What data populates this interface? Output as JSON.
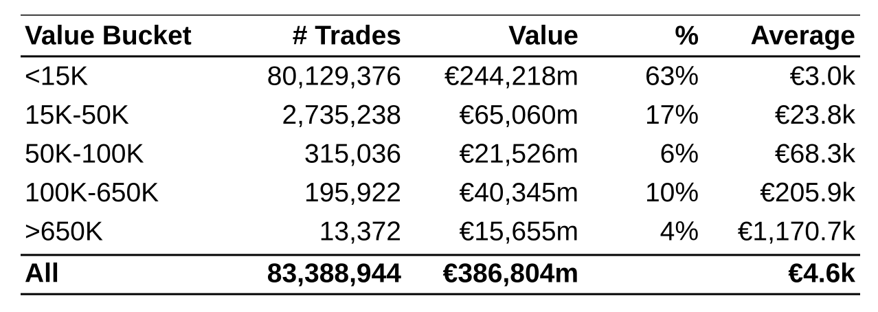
{
  "table": {
    "header": [
      "Value Bucket",
      "# Trades",
      "Value",
      "%",
      "Average"
    ],
    "rows": [
      [
        "<15K",
        "80,129,376",
        "€244,218m",
        "63%",
        "€3.0k"
      ],
      [
        "15K-50K",
        "2,735,238",
        "€65,060m",
        "17%",
        "€23.8k"
      ],
      [
        "50K-100K",
        "315,036",
        "€21,526m",
        "6%",
        "€68.3k"
      ],
      [
        "100K-650K",
        "195,922",
        "€40,345m",
        "10%",
        "€205.9k"
      ],
      [
        ">650K",
        "13,372",
        "€15,655m",
        "4%",
        "€1,170.7k"
      ]
    ],
    "total": {
      "label": "All",
      "trades": "83,388,944",
      "value": "€386,804m",
      "average": "€4.6k"
    }
  }
}
